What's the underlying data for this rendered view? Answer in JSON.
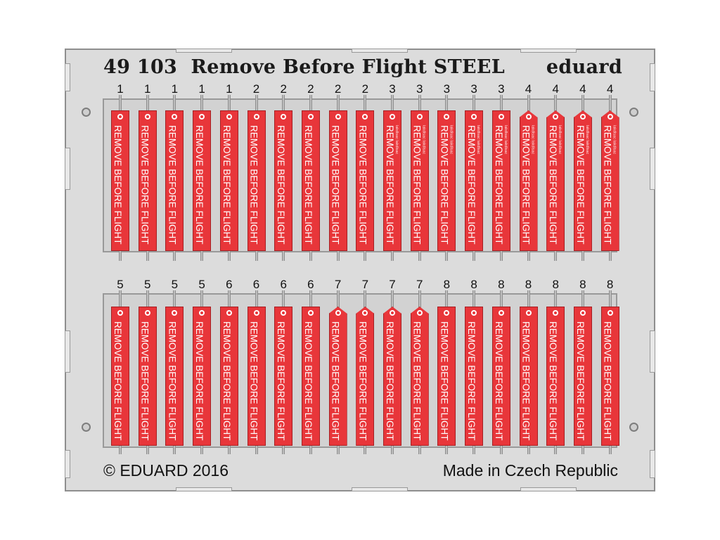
{
  "header": {
    "product_number": "49 103",
    "product_name": "Remove Before Flight STEEL",
    "brand": "eduard"
  },
  "footer": {
    "copyright": "© EDUARD 2016",
    "origin": "Made in Czech Republic"
  },
  "tag_text": "REMOVE  BEFORE FLIGHT",
  "tag_small_print": "lakdlsac lakdlsac",
  "rows": [
    {
      "labels": [
        "1",
        "1",
        "1",
        "1",
        "1",
        "2",
        "2",
        "2",
        "2",
        "2",
        "3",
        "3",
        "3",
        "3",
        "3",
        "4",
        "4",
        "4",
        "4"
      ]
    },
    {
      "labels": [
        "5",
        "5",
        "5",
        "5",
        "6",
        "6",
        "6",
        "6",
        "7",
        "7",
        "7",
        "7",
        "8",
        "8",
        "8",
        "8",
        "8",
        "8",
        "8"
      ]
    }
  ],
  "colors": {
    "tag_red": "#e8363a",
    "fret": "#dcdcdc"
  }
}
